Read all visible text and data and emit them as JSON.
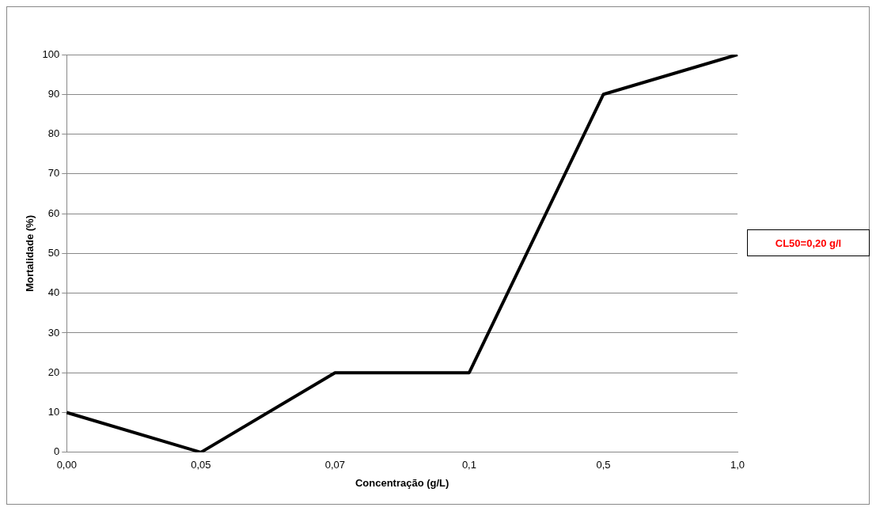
{
  "chart_data": {
    "type": "line",
    "xlabel": "Concentração (g/L)",
    "ylabel": "Mortalidade (%)",
    "categories": [
      "0,00",
      "0,05",
      "0,07",
      "0,1",
      "0,5",
      "1,0"
    ],
    "series": [
      {
        "color": "#000000",
        "values": [
          10,
          0,
          20,
          20,
          90,
          100
        ]
      }
    ],
    "ylim": [
      0,
      100
    ],
    "yticks": [
      0,
      10,
      20,
      30,
      40,
      50,
      60,
      70,
      80,
      90,
      100
    ],
    "grid": "y",
    "legend": false,
    "marker": "none",
    "line_style": "solid",
    "annotations": [
      "CL50=0,20 g/l"
    ]
  }
}
